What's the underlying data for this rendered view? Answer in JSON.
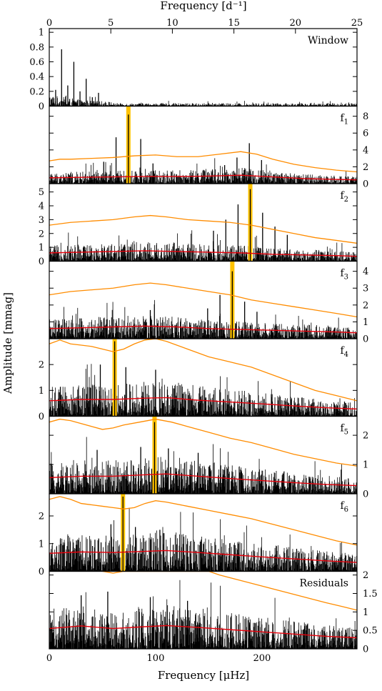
{
  "colors": {
    "background": "#ffffff",
    "spectrum": "#000000",
    "significance_curve": "#ff8c00",
    "noise_curve": "#e8000b",
    "frequency_marker": "#ffc200"
  },
  "chart_data": {
    "type": "line",
    "top_axis": {
      "label": "Frequency [d⁻¹]",
      "range": [
        0,
        25
      ],
      "ticks": [
        "0",
        "5",
        "10",
        "15",
        "20",
        "25"
      ]
    },
    "bottom_axis": {
      "label": "Frequency [μHz]",
      "range": [
        0,
        289.35
      ],
      "ticks": [
        "0",
        "100",
        "200"
      ]
    },
    "ylabel": "Amplitude [mmag]",
    "grid": false,
    "panels": [
      {
        "label": "Window",
        "label_sub": "",
        "ylim": [
          0,
          1.05
        ],
        "y_tick_side": "left",
        "y_ticks": [
          "0",
          "0.2",
          "0.4",
          "0.6",
          "0.8",
          "1"
        ],
        "y_tick_values": [
          0,
          0.2,
          0.4,
          0.6,
          0.8,
          1
        ],
        "peaks": [
          {
            "x": 11.6,
            "y": 0.77
          },
          {
            "x": 23.1,
            "y": 0.6
          },
          {
            "x": 34.7,
            "y": 0.37
          },
          {
            "x": 17.4,
            "y": 0.28
          },
          {
            "x": 6.0,
            "y": 0.22
          },
          {
            "x": 46.3,
            "y": 0.18
          },
          {
            "x": 28.9,
            "y": 0.2
          },
          {
            "x": 40.5,
            "y": 0.12
          }
        ],
        "noise_level": 0.045,
        "significance_curve": [],
        "noise_curve": [],
        "marker_x": null
      },
      {
        "label": "f",
        "label_sub": "1",
        "ylim": [
          0,
          9.2
        ],
        "y_tick_side": "right",
        "y_ticks": [
          "0",
          "2",
          "4",
          "6",
          "8"
        ],
        "y_tick_values": [
          0,
          2,
          4,
          6,
          8
        ],
        "peaks": [
          {
            "x": 74.4,
            "y": 8.2
          },
          {
            "x": 62.8,
            "y": 5.5
          },
          {
            "x": 86.0,
            "y": 5.3
          },
          {
            "x": 51.2,
            "y": 2.6
          },
          {
            "x": 97.5,
            "y": 2.4
          },
          {
            "x": 188.1,
            "y": 4.8
          },
          {
            "x": 176.5,
            "y": 3.1
          },
          {
            "x": 199.6,
            "y": 2.8
          },
          {
            "x": 164.9,
            "y": 2.2
          }
        ],
        "noise_level": 1.2,
        "significance_curve": [
          [
            0,
            2.7
          ],
          [
            10,
            2.9
          ],
          [
            20,
            2.9
          ],
          [
            40,
            3.0
          ],
          [
            60,
            3.1
          ],
          [
            80,
            3.3
          ],
          [
            100,
            3.4
          ],
          [
            120,
            3.2
          ],
          [
            140,
            3.2
          ],
          [
            160,
            3.5
          ],
          [
            180,
            3.8
          ],
          [
            195,
            3.5
          ],
          [
            210,
            2.9
          ],
          [
            230,
            2.3
          ],
          [
            250,
            1.9
          ],
          [
            270,
            1.6
          ],
          [
            289,
            1.4
          ]
        ],
        "noise_curve": [
          [
            0,
            0.7
          ],
          [
            30,
            0.75
          ],
          [
            60,
            0.8
          ],
          [
            90,
            0.85
          ],
          [
            120,
            0.85
          ],
          [
            150,
            0.9
          ],
          [
            180,
            1.0
          ],
          [
            210,
            0.8
          ],
          [
            240,
            0.6
          ],
          [
            270,
            0.5
          ],
          [
            289,
            0.45
          ]
        ],
        "marker_x": 74.4
      },
      {
        "label": "f",
        "label_sub": "2",
        "ylim": [
          0,
          5.6
        ],
        "y_tick_side": "left",
        "y_ticks": [
          "0",
          "1",
          "2",
          "3",
          "4",
          "5"
        ],
        "y_tick_values": [
          0,
          1,
          2,
          3,
          4,
          5
        ],
        "peaks": [
          {
            "x": 189.0,
            "y": 5.2
          },
          {
            "x": 177.5,
            "y": 4.1
          },
          {
            "x": 200.6,
            "y": 3.5
          },
          {
            "x": 166.0,
            "y": 3.0
          },
          {
            "x": 212.2,
            "y": 2.5
          },
          {
            "x": 154.4,
            "y": 2.2
          },
          {
            "x": 223.8,
            "y": 1.9
          }
        ],
        "noise_level": 1.1,
        "significance_curve": [
          [
            0,
            2.6
          ],
          [
            20,
            2.8
          ],
          [
            40,
            2.9
          ],
          [
            60,
            3.0
          ],
          [
            80,
            3.2
          ],
          [
            95,
            3.3
          ],
          [
            110,
            3.2
          ],
          [
            130,
            3.0
          ],
          [
            150,
            2.9
          ],
          [
            170,
            2.8
          ],
          [
            190,
            2.6
          ],
          [
            210,
            2.3
          ],
          [
            230,
            2.0
          ],
          [
            250,
            1.7
          ],
          [
            270,
            1.5
          ],
          [
            289,
            1.3
          ]
        ],
        "noise_curve": [
          [
            0,
            0.6
          ],
          [
            30,
            0.65
          ],
          [
            60,
            0.7
          ],
          [
            90,
            0.75
          ],
          [
            120,
            0.7
          ],
          [
            150,
            0.65
          ],
          [
            180,
            0.6
          ],
          [
            210,
            0.5
          ],
          [
            240,
            0.45
          ],
          [
            270,
            0.4
          ],
          [
            289,
            0.35
          ]
        ],
        "marker_x": 189.0
      },
      {
        "label": "f",
        "label_sub": "3",
        "ylim": [
          0,
          4.6
        ],
        "y_tick_side": "right",
        "y_ticks": [
          "0",
          "1",
          "2",
          "3",
          "4"
        ],
        "y_tick_values": [
          0,
          1,
          2,
          3,
          4
        ],
        "peaks": [
          {
            "x": 172.1,
            "y": 4.0
          },
          {
            "x": 160.5,
            "y": 2.6
          },
          {
            "x": 183.7,
            "y": 2.2
          },
          {
            "x": 148.9,
            "y": 1.8
          },
          {
            "x": 195.3,
            "y": 1.6
          },
          {
            "x": 95.0,
            "y": 1.7
          }
        ],
        "noise_level": 0.95,
        "significance_curve": [
          [
            0,
            2.6
          ],
          [
            20,
            2.8
          ],
          [
            40,
            2.9
          ],
          [
            60,
            3.0
          ],
          [
            80,
            3.2
          ],
          [
            95,
            3.3
          ],
          [
            110,
            3.2
          ],
          [
            130,
            3.0
          ],
          [
            150,
            2.8
          ],
          [
            170,
            2.6
          ],
          [
            190,
            2.3
          ],
          [
            210,
            2.1
          ],
          [
            230,
            1.9
          ],
          [
            250,
            1.7
          ],
          [
            270,
            1.5
          ],
          [
            289,
            1.3
          ]
        ],
        "noise_curve": [
          [
            0,
            0.6
          ],
          [
            30,
            0.65
          ],
          [
            60,
            0.7
          ],
          [
            90,
            0.75
          ],
          [
            120,
            0.7
          ],
          [
            150,
            0.6
          ],
          [
            180,
            0.55
          ],
          [
            210,
            0.5
          ],
          [
            240,
            0.45
          ],
          [
            270,
            0.4
          ],
          [
            289,
            0.35
          ]
        ],
        "marker_x": 172.1
      },
      {
        "label": "f",
        "label_sub": "4",
        "ylim": [
          0,
          3.0
        ],
        "y_tick_side": "left",
        "y_ticks": [
          "0",
          "1",
          "2"
        ],
        "y_tick_values": [
          0,
          1,
          2
        ],
        "peaks": [
          {
            "x": 61.5,
            "y": 2.9
          },
          {
            "x": 48.0,
            "y": 2.0
          },
          {
            "x": 72.0,
            "y": 1.9
          },
          {
            "x": 100.0,
            "y": 1.8
          }
        ],
        "noise_level": 1.55,
        "significance_curve": [
          [
            0,
            2.8
          ],
          [
            10,
            2.95
          ],
          [
            20,
            2.8
          ],
          [
            30,
            2.75
          ],
          [
            40,
            2.7
          ],
          [
            50,
            2.6
          ],
          [
            60,
            2.5
          ],
          [
            70,
            2.6
          ],
          [
            80,
            2.8
          ],
          [
            90,
            2.95
          ],
          [
            100,
            3.0
          ],
          [
            110,
            2.9
          ],
          [
            130,
            2.6
          ],
          [
            150,
            2.3
          ],
          [
            170,
            2.1
          ],
          [
            190,
            1.9
          ],
          [
            210,
            1.6
          ],
          [
            230,
            1.3
          ],
          [
            250,
            1.0
          ],
          [
            270,
            0.8
          ],
          [
            289,
            0.6
          ]
        ],
        "noise_curve": [
          [
            0,
            0.6
          ],
          [
            30,
            0.65
          ],
          [
            60,
            0.65
          ],
          [
            90,
            0.7
          ],
          [
            110,
            0.72
          ],
          [
            140,
            0.62
          ],
          [
            170,
            0.55
          ],
          [
            200,
            0.48
          ],
          [
            230,
            0.4
          ],
          [
            260,
            0.33
          ],
          [
            289,
            0.28
          ]
        ],
        "marker_x": 61.5
      },
      {
        "label": "f",
        "label_sub": "5",
        "ylim": [
          0,
          2.65
        ],
        "y_tick_side": "right",
        "y_ticks": [
          "0",
          "1",
          "2"
        ],
        "y_tick_values": [
          0,
          1,
          2
        ],
        "peaks": [
          {
            "x": 99.0,
            "y": 2.45
          },
          {
            "x": 86.0,
            "y": 1.6
          },
          {
            "x": 112.0,
            "y": 1.55
          },
          {
            "x": 45.0,
            "y": 1.5
          },
          {
            "x": 140.0,
            "y": 1.4
          }
        ],
        "noise_level": 1.35,
        "significance_curve": [
          [
            0,
            2.45
          ],
          [
            10,
            2.55
          ],
          [
            20,
            2.5
          ],
          [
            30,
            2.4
          ],
          [
            40,
            2.3
          ],
          [
            50,
            2.2
          ],
          [
            60,
            2.25
          ],
          [
            70,
            2.35
          ],
          [
            85,
            2.45
          ],
          [
            100,
            2.55
          ],
          [
            115,
            2.45
          ],
          [
            130,
            2.3
          ],
          [
            150,
            2.1
          ],
          [
            170,
            1.9
          ],
          [
            190,
            1.75
          ],
          [
            210,
            1.55
          ],
          [
            230,
            1.35
          ],
          [
            250,
            1.2
          ],
          [
            270,
            1.05
          ],
          [
            289,
            0.95
          ]
        ],
        "noise_curve": [
          [
            0,
            0.55
          ],
          [
            30,
            0.6
          ],
          [
            60,
            0.6
          ],
          [
            90,
            0.65
          ],
          [
            110,
            0.68
          ],
          [
            140,
            0.6
          ],
          [
            170,
            0.52
          ],
          [
            200,
            0.45
          ],
          [
            230,
            0.38
          ],
          [
            260,
            0.32
          ],
          [
            289,
            0.28
          ]
        ],
        "marker_x": 99.0
      },
      {
        "label": "f",
        "label_sub": "6",
        "ylim": [
          0,
          2.8
        ],
        "y_tick_side": "left",
        "y_ticks": [
          "0",
          "1",
          "2"
        ],
        "y_tick_values": [
          0,
          1,
          2
        ],
        "peaks": [
          {
            "x": 69.3,
            "y": 2.7
          },
          {
            "x": 58.0,
            "y": 1.7
          },
          {
            "x": 81.0,
            "y": 1.6
          },
          {
            "x": 104.0,
            "y": 1.5
          }
        ],
        "noise_level": 1.3,
        "significance_curve": [
          [
            0,
            2.6
          ],
          [
            10,
            2.7
          ],
          [
            20,
            2.6
          ],
          [
            30,
            2.45
          ],
          [
            40,
            2.4
          ],
          [
            50,
            2.35
          ],
          [
            60,
            2.3
          ],
          [
            70,
            2.25
          ],
          [
            80,
            2.3
          ],
          [
            90,
            2.45
          ],
          [
            100,
            2.55
          ],
          [
            110,
            2.5
          ],
          [
            130,
            2.35
          ],
          [
            150,
            2.2
          ],
          [
            170,
            2.05
          ],
          [
            190,
            1.9
          ],
          [
            210,
            1.7
          ],
          [
            230,
            1.5
          ],
          [
            250,
            1.3
          ],
          [
            270,
            1.1
          ],
          [
            289,
            0.95
          ]
        ],
        "noise_curve": [
          [
            0,
            0.65
          ],
          [
            30,
            0.7
          ],
          [
            60,
            0.68
          ],
          [
            90,
            0.72
          ],
          [
            110,
            0.75
          ],
          [
            140,
            0.68
          ],
          [
            170,
            0.6
          ],
          [
            200,
            0.52
          ],
          [
            230,
            0.45
          ],
          [
            260,
            0.38
          ],
          [
            289,
            0.32
          ]
        ],
        "marker_x": 69.3
      },
      {
        "label": "Residuals",
        "label_sub": "",
        "ylim": [
          0,
          2.1
        ],
        "y_tick_side": "right",
        "y_ticks": [
          "0",
          "0.5",
          "1",
          "1.5",
          "2"
        ],
        "y_tick_values": [
          0,
          0.5,
          1,
          1.5,
          2
        ],
        "peaks": [
          {
            "x": 30.0,
            "y": 1.45
          },
          {
            "x": 55.0,
            "y": 1.55
          },
          {
            "x": 95.0,
            "y": 1.4
          },
          {
            "x": 130.0,
            "y": 1.3
          }
        ],
        "noise_level": 1.0,
        "significance_curve": [
          [
            50,
            2.1
          ],
          [
            60,
            2.05
          ],
          [
            70,
            2.1
          ],
          [
            150,
            2.1
          ],
          [
            160,
            2.0
          ],
          [
            180,
            1.85
          ],
          [
            200,
            1.7
          ],
          [
            220,
            1.55
          ],
          [
            240,
            1.4
          ],
          [
            260,
            1.25
          ],
          [
            275,
            1.15
          ],
          [
            289,
            1.05
          ]
        ],
        "noise_curve": [
          [
            0,
            0.55
          ],
          [
            30,
            0.62
          ],
          [
            60,
            0.55
          ],
          [
            90,
            0.6
          ],
          [
            110,
            0.63
          ],
          [
            140,
            0.58
          ],
          [
            170,
            0.52
          ],
          [
            200,
            0.46
          ],
          [
            230,
            0.4
          ],
          [
            260,
            0.34
          ],
          [
            289,
            0.3
          ]
        ],
        "marker_x": null
      }
    ]
  }
}
